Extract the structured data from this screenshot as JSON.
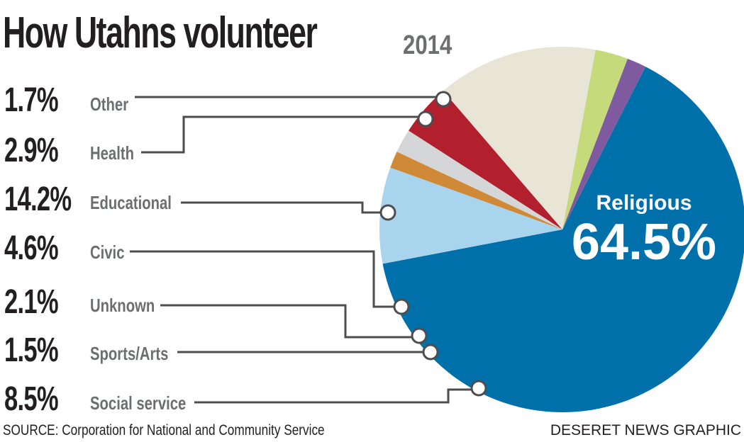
{
  "title": "How Utahns volunteer",
  "year": "2014",
  "source": "SOURCE: Corporation for National and Community Service",
  "credit": "DESERET NEWS GRAPHIC",
  "chart_data": {
    "type": "pie",
    "title": "How Utahns volunteer",
    "unit": "%",
    "slices": [
      {
        "name": "Religious",
        "value": 64.5,
        "label": "64.5%",
        "color": "#0070aa"
      },
      {
        "name": "Social service",
        "value": 8.5,
        "label": "8.5%",
        "color": "#a9d4ee"
      },
      {
        "name": "Sports/Arts",
        "value": 1.5,
        "label": "1.5%",
        "color": "#d08a37"
      },
      {
        "name": "Unknown",
        "value": 2.1,
        "label": "2.1%",
        "color": "#d5d6d8"
      },
      {
        "name": "Civic",
        "value": 4.6,
        "label": "4.6%",
        "color": "#b2202e"
      },
      {
        "name": "Educational",
        "value": 14.2,
        "label": "14.2%",
        "color": "#e9e5d6"
      },
      {
        "name": "Health",
        "value": 2.9,
        "label": "2.9%",
        "color": "#c4da7b"
      },
      {
        "name": "Other",
        "value": 1.7,
        "label": "1.7%",
        "color": "#7f5a9f"
      }
    ],
    "legend_order": [
      "Other",
      "Health",
      "Educational",
      "Civic",
      "Unknown",
      "Sports/Arts",
      "Social service"
    ]
  }
}
